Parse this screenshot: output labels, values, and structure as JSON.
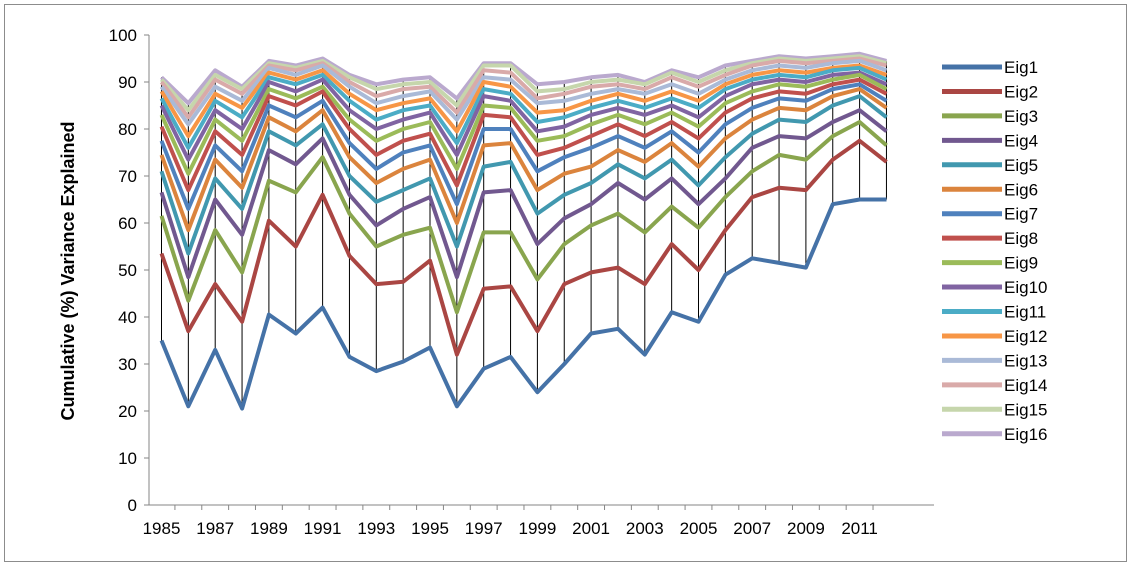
{
  "chart_data": {
    "type": "line",
    "title": "",
    "xlabel": "",
    "ylabel": "Cumulative (%) Variance Explained",
    "ylim": [
      0,
      100
    ],
    "yticks": [
      0,
      10,
      20,
      30,
      40,
      50,
      60,
      70,
      80,
      90,
      100
    ],
    "x": [
      1985,
      1986,
      1987,
      1988,
      1989,
      1990,
      1991,
      1992,
      1993,
      1994,
      1995,
      1996,
      1997,
      1998,
      1999,
      2000,
      2001,
      2002,
      2003,
      2004,
      2005,
      2006,
      2007,
      2008,
      2009,
      2010,
      2011,
      2012
    ],
    "xtick_labels": [
      "1985",
      "1987",
      "1989",
      "1991",
      "1993",
      "1995",
      "1997",
      "1999",
      "2001",
      "2003",
      "2005",
      "2007",
      "2009",
      "2011"
    ],
    "grid": false,
    "drop_lines": true,
    "legend_position": "right",
    "series": [
      {
        "name": "Eig1",
        "color": "#4572a7",
        "values": [
          35,
          21,
          33,
          20.5,
          40.5,
          36.5,
          42,
          31.5,
          28.5,
          30.5,
          33.5,
          21,
          29,
          31.5,
          24,
          30,
          36.5,
          37.5,
          32,
          41,
          39,
          49,
          52.5,
          51.5,
          50.5,
          64,
          65,
          65
        ]
      },
      {
        "name": "Eig2",
        "color": "#aa4643",
        "values": [
          53.5,
          37,
          47,
          39,
          60.5,
          55,
          66,
          53,
          47,
          47.5,
          52,
          32,
          46,
          46.5,
          37,
          47,
          49.5,
          50.5,
          47,
          55.5,
          50,
          58.5,
          65.5,
          67.5,
          67,
          73.5,
          77.5,
          73
        ]
      },
      {
        "name": "Eig3",
        "color": "#89a54e",
        "values": [
          61.5,
          43.5,
          58.5,
          49.5,
          69,
          66.5,
          74,
          62,
          55,
          57.5,
          59,
          41,
          58,
          58,
          48,
          55.5,
          59.5,
          62,
          58,
          63.5,
          59,
          65.5,
          71,
          74.5,
          73.5,
          78.5,
          81.5,
          76.5
        ]
      },
      {
        "name": "Eig4",
        "color": "#71588f",
        "values": [
          66.5,
          48.5,
          65,
          57.5,
          75.5,
          72.5,
          78,
          66,
          59.5,
          63,
          65.5,
          48.5,
          66.5,
          67,
          55.5,
          61,
          64,
          68.5,
          65,
          69.5,
          64,
          69.5,
          76,
          78.5,
          78,
          81.5,
          84,
          79.5
        ]
      },
      {
        "name": "Eig5",
        "color": "#4198af",
        "values": [
          71,
          53.5,
          69.5,
          63,
          79.5,
          76.5,
          81,
          70,
          64.5,
          67,
          69.5,
          55,
          72,
          73,
          62,
          66,
          68.5,
          72.5,
          69.5,
          73.5,
          68,
          74,
          79,
          82,
          81.5,
          85,
          87,
          82.5
        ]
      },
      {
        "name": "Eig6",
        "color": "#db843d",
        "values": [
          74.5,
          58.5,
          73.5,
          67.5,
          82.5,
          79.5,
          84,
          74,
          68.5,
          71.5,
          73.5,
          60,
          76.5,
          77,
          67,
          70.5,
          72,
          75.5,
          73,
          77,
          72,
          78,
          82,
          84.5,
          84,
          87,
          88.5,
          84.5
        ]
      },
      {
        "name": "Eig7",
        "color": "#4f81bd",
        "values": [
          77.5,
          63,
          76.5,
          71,
          85,
          82.5,
          86,
          77,
          71.5,
          75,
          76.5,
          64,
          80,
          80,
          71,
          74,
          76,
          78.5,
          76,
          79.5,
          75,
          81,
          84.5,
          86.5,
          86,
          88.5,
          89.5,
          86
        ]
      },
      {
        "name": "Eig8",
        "color": "#c0504d",
        "values": [
          80.5,
          67,
          79.5,
          74.5,
          87,
          85,
          88,
          80,
          74.5,
          77.5,
          79,
          68,
          83,
          82.5,
          74.5,
          76,
          78.5,
          81,
          78.5,
          81.5,
          78,
          83.5,
          86.5,
          88,
          87.5,
          89.5,
          90.5,
          87.5
        ]
      },
      {
        "name": "Eig9",
        "color": "#9bbb59",
        "values": [
          83,
          70.5,
          82,
          77.5,
          88.5,
          86.5,
          89,
          82,
          77.5,
          80,
          81.5,
          71.5,
          85,
          84.5,
          77.5,
          78.5,
          81,
          83,
          81,
          83.5,
          80.5,
          85.5,
          88,
          89.5,
          89,
          90.5,
          91.5,
          88.5
        ]
      },
      {
        "name": "Eig10",
        "color": "#8064a2",
        "values": [
          85,
          73.5,
          84,
          80,
          90,
          88,
          90.5,
          84,
          80,
          82,
          83.5,
          74.5,
          87,
          86,
          79.5,
          80.5,
          83,
          84.5,
          83,
          85,
          82.5,
          87,
          89.5,
          90.5,
          90,
          91.5,
          92,
          89.5
        ]
      },
      {
        "name": "Eig11",
        "color": "#4bacc6",
        "values": [
          86.5,
          76,
          86,
          82.5,
          91,
          89.5,
          91.5,
          86,
          82,
          84,
          85,
          77,
          88.5,
          87.5,
          81.5,
          82.5,
          84.5,
          86,
          84.5,
          86.5,
          84.5,
          88.5,
          90.5,
          91.5,
          91,
          92.5,
          93,
          90.5
        ]
      },
      {
        "name": "Eig12",
        "color": "#f79646",
        "values": [
          88,
          78.5,
          87.5,
          84.5,
          92,
          90.5,
          92.5,
          87.5,
          84,
          85.5,
          86.5,
          79.5,
          90,
          89,
          83.5,
          84,
          86,
          87.5,
          86,
          88,
          86,
          89.5,
          91.5,
          92.5,
          92,
          93,
          93.5,
          91.5
        ]
      },
      {
        "name": "Eig13",
        "color": "#aabad7",
        "values": [
          89,
          81,
          89,
          86,
          93,
          91.5,
          93.5,
          89,
          85.5,
          87,
          88,
          82,
          91,
          90.5,
          85.5,
          86,
          87.5,
          88.5,
          87.5,
          89.5,
          87.5,
          90.5,
          92.5,
          93.5,
          93,
          94,
          94.5,
          92.5
        ]
      },
      {
        "name": "Eig14",
        "color": "#d9aaa9",
        "values": [
          90,
          82.5,
          90.5,
          87.5,
          93.5,
          92.5,
          94,
          90,
          87,
          88.5,
          89,
          83.5,
          92.5,
          92,
          86.5,
          87.5,
          89,
          89.5,
          88.5,
          91,
          89,
          91.5,
          93.5,
          94.5,
          94,
          94.5,
          95,
          93.5
        ]
      },
      {
        "name": "Eig15",
        "color": "#c6d6ac",
        "values": [
          90.5,
          84,
          91.5,
          88.5,
          94,
          93,
          94.5,
          91,
          88.5,
          89.5,
          90,
          85,
          93.5,
          93.5,
          88,
          88.5,
          90,
          90.5,
          89.5,
          92,
          90,
          92.5,
          94,
          95,
          94.5,
          95,
          95.5,
          94
        ]
      },
      {
        "name": "Eig16",
        "color": "#baa9ce",
        "values": [
          91,
          85.5,
          92.5,
          89,
          94.5,
          93.5,
          95,
          91.5,
          89.5,
          90.5,
          91,
          86.5,
          94,
          94,
          89.5,
          90,
          91,
          91.5,
          90,
          92.5,
          91,
          93.5,
          94.5,
          95.5,
          95,
          95.5,
          96,
          94.5
        ]
      }
    ]
  }
}
